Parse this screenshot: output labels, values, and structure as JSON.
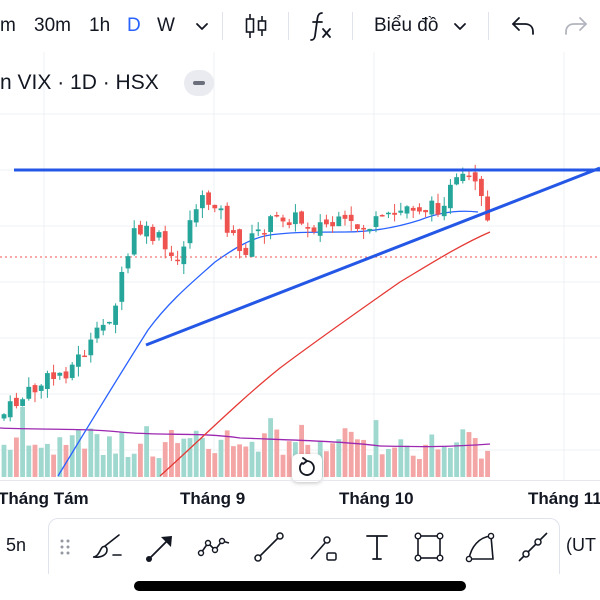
{
  "toolbar": {
    "intervals": [
      {
        "label": "m",
        "active": false
      },
      {
        "label": "30m",
        "active": false
      },
      {
        "label": "1h",
        "active": false
      },
      {
        "label": "D",
        "active": true
      },
      {
        "label": "W",
        "active": false
      }
    ],
    "interval_dropdown_icon": "chevron-down-icon",
    "chart_type_icon": "candlestick-icon",
    "indicators_icon": "fx-icon",
    "layout_label": "Biểu đồ",
    "undo_icon": "undo-icon",
    "redo_icon": "redo-icon"
  },
  "symbol": {
    "title": "n VIX · 1D · HSX",
    "collapse_icon": "minus-icon"
  },
  "chart": {
    "reset_icon": "reset-icon",
    "colors": {
      "up": "#26a69a",
      "down": "#ef5350",
      "volume_up": "#9fd8cf",
      "volume_down": "#f4a5a5",
      "ma_fast": "#2962ff",
      "ma_slow": "#e53935",
      "volume_ma": "#9c27b0",
      "trendline": "#2457e6",
      "price_line": "#ef5350"
    }
  },
  "time_axis": {
    "labels": [
      "Tháng Tám",
      "Tháng 9",
      "Tháng 10",
      "Tháng 11"
    ]
  },
  "drawing_toolbar": {
    "range_label": "5n",
    "timezone_label": "(UT",
    "tools": [
      "drag-handle-icon",
      "brush-icon",
      "arrow-icon",
      "path-icon",
      "trend-line-icon",
      "measure-icon",
      "text-icon",
      "rectangle-icon",
      "arc-icon",
      "ray-icon"
    ]
  }
}
